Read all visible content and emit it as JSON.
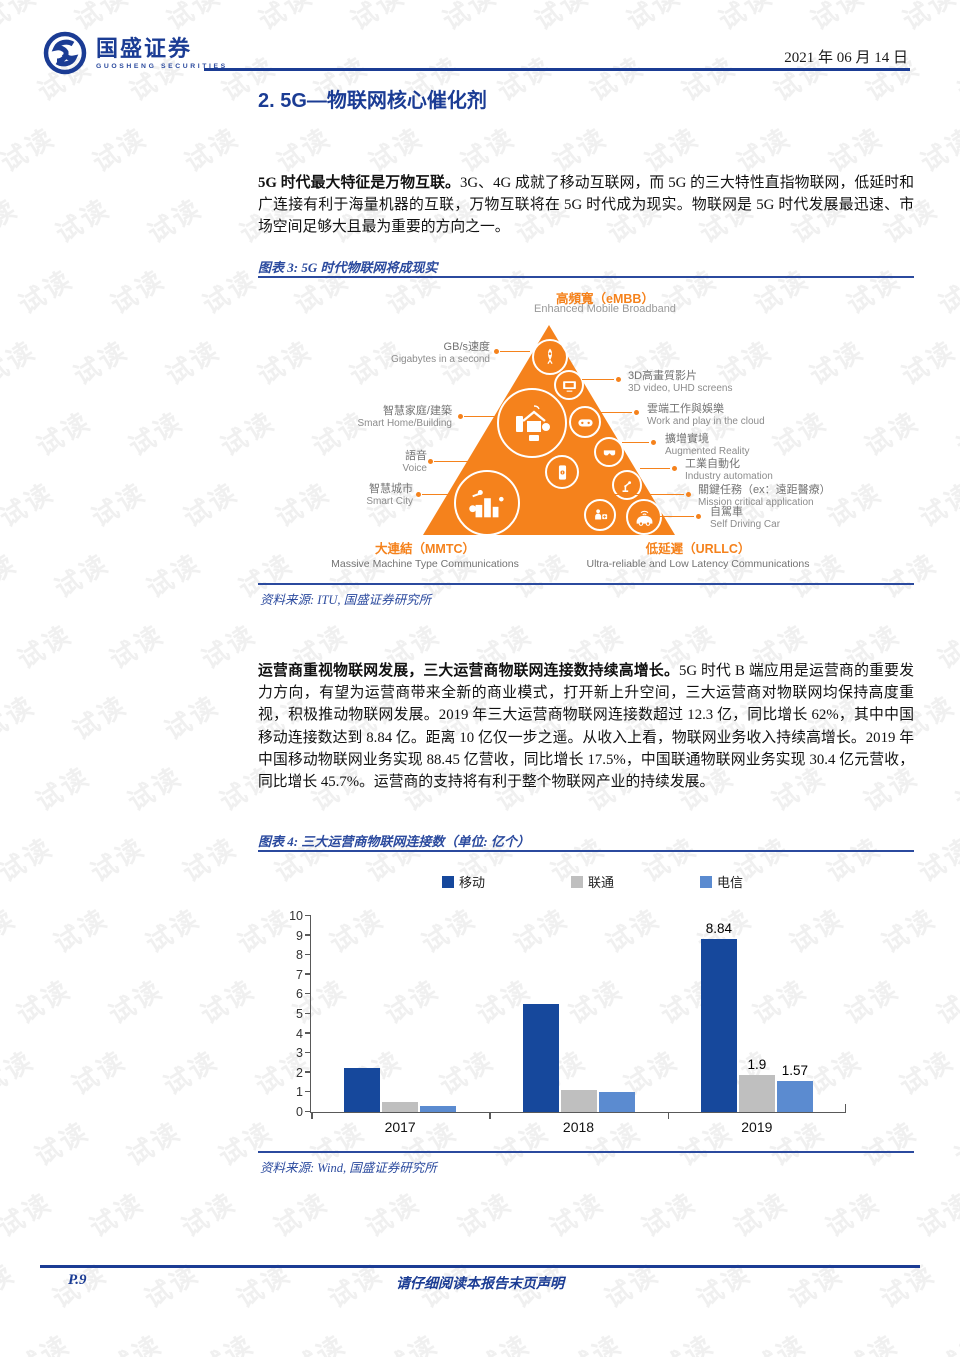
{
  "page": {
    "watermark_text": "试读"
  },
  "header": {
    "brand_cn": "国盛证券",
    "brand_en": "GUOSHENG SECURITIES",
    "date": "2021 年 06 月 14 日"
  },
  "section_title": "2. 5G—物联网核心催化剂",
  "paragraphs": {
    "p1_lead": "5G 时代最大特征是万物互联。",
    "p1_body": "3G、4G 成就了移动互联网，而 5G 的三大特性直指物联网，低延时和广连接有利于海量机器的互联，万物互联将在 5G 时代成为现实。物联网是 5G 时代发展最迅速、市场空间足够大且最为重要的方向之一。",
    "p2_lead": "运营商重视物联网发展，三大运营商物联网连接数持续高增长。",
    "p2_body": "5G 时代 B 端应用是运营商的重要发力方向，有望为运营商带来全新的商业模式，打开新上升空间，三大运营商对物联网均保持高度重视，积极推动物联网发展。2019 年三大运营商物联网连接数超过 12.3 亿，同比增长 62%，其中中国移动连接数达到 8.84 亿。距离 10 亿仅一步之遥。从收入上看，物联网业务收入持续高增长。2019 年中国移动物联网业务实现 88.45 亿营收，同比增长 17.5%，中国联通物联网业务实现 30.4 亿元营收，同比增长 45.7%。运营商的支持将有利于整个物联网产业的持续发展。"
  },
  "figure3": {
    "caption": "图表 3: 5G 时代物联网将成现实",
    "source": "资料来源: ITU, 国盛证券研究所",
    "pyramid": {
      "top_cn": "高頻寬（eMBB）",
      "top_en": "Enhanced Mobile Broadband",
      "left_items": [
        {
          "cn": "GB/s速度",
          "en": "Gigabytes in a second",
          "icon": "rocket-icon"
        },
        {
          "cn": "智慧家庭/建築",
          "en": "Smart Home/Building",
          "icon": "smart-home-icon"
        },
        {
          "cn": "語音",
          "en": "Voice",
          "icon": "voice-phone-icon"
        },
        {
          "cn": "智慧城市",
          "en": "Smart City",
          "icon": "smart-city-icon"
        }
      ],
      "right_items": [
        {
          "cn": "3D高畫質影片",
          "en": "3D video, UHD screens",
          "icon": "tv-icon"
        },
        {
          "cn": "雲端工作與娛樂",
          "en": "Work and play in the cloud",
          "icon": "gamepad-icon"
        },
        {
          "cn": "擴增實境",
          "en": "Augmented Reality",
          "icon": "ar-glasses-icon"
        },
        {
          "cn": "工業自動化",
          "en": "Industry automation",
          "icon": "robot-arm-icon"
        },
        {
          "cn": "關鍵任務（ex：遠距醫療）",
          "en": "Mission critical application",
          "icon": "mission-critical-icon"
        },
        {
          "cn": "自駕車",
          "en": "Self Driving Car",
          "icon": "self-driving-car-icon"
        }
      ],
      "bottom_left_cn": "大連結（MMTC）",
      "bottom_left_en": "Massive Machine Type Communications",
      "bottom_right_cn": "低延遲（URLLC）",
      "bottom_right_en": "Ultra-reliable and Low Latency Communications"
    }
  },
  "figure4": {
    "caption": "图表 4: 三大运营商物联网连接数（单位: 亿个）",
    "source": "资料来源: Wind, 国盛证券研究所"
  },
  "chart_data": {
    "type": "bar",
    "title": "三大运营商物联网连接数（单位: 亿个）",
    "categories": [
      "2017",
      "2018",
      "2019"
    ],
    "series": [
      {
        "name": "移动",
        "color": "#16489c",
        "values": [
          2.25,
          5.5,
          8.84
        ],
        "labels": [
          "",
          "",
          "8.84"
        ]
      },
      {
        "name": "联通",
        "color": "#bfbfbf",
        "values": [
          0.5,
          1.1,
          1.9
        ],
        "labels": [
          "",
          "",
          "1.9"
        ]
      },
      {
        "name": "电信",
        "color": "#5b8bd0",
        "values": [
          0.3,
          1.0,
          1.57
        ],
        "labels": [
          "",
          "",
          "1.57"
        ]
      }
    ],
    "xlabel": "",
    "ylabel": "",
    "ylim": [
      0,
      10
    ],
    "yticks": [
      0,
      1,
      2,
      3,
      4,
      5,
      6,
      7,
      8,
      9,
      10
    ],
    "legend_position": "top",
    "grid": false
  },
  "footer": {
    "page_number": "P.9",
    "disclaimer": "请仔细阅读本报告末页声明"
  },
  "colors": {
    "navy": "#1b3c94",
    "rule_blue": "#2b4a9e",
    "orange": "#f5821c",
    "bar_mobile": "#16489c",
    "bar_unicom": "#bfbfbf",
    "bar_telecom": "#5b8bd0"
  }
}
